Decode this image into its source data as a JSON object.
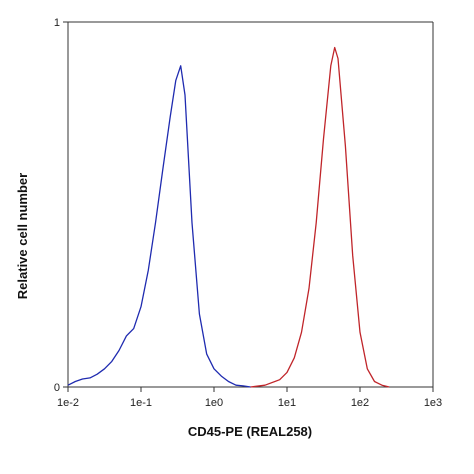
{
  "chart_data": {
    "type": "line",
    "xlabel": "CD45-PE (REAL258)",
    "ylabel": "Relative cell number",
    "x_scale": "log",
    "xlim": [
      0.01,
      1000
    ],
    "ylim": [
      0,
      1
    ],
    "x_ticks": [
      {
        "value": 0.01,
        "label": "1e-2"
      },
      {
        "value": 0.1,
        "label": "1e-1"
      },
      {
        "value": 1,
        "label": "1e0"
      },
      {
        "value": 10,
        "label": "1e1"
      },
      {
        "value": 100,
        "label": "1e2"
      },
      {
        "value": 1000,
        "label": "1e3"
      }
    ],
    "y_ticks": [
      {
        "value": 0,
        "label": "0"
      },
      {
        "value": 1,
        "label": "1"
      }
    ],
    "grid": false,
    "legend": "none",
    "series": [
      {
        "color": "#1f2bb0",
        "x": [
          0.01,
          0.0126,
          0.0158,
          0.02,
          0.0251,
          0.0316,
          0.0398,
          0.05,
          0.0631,
          0.0794,
          0.1,
          0.126,
          0.158,
          0.2,
          0.251,
          0.3,
          0.35,
          0.4,
          0.5,
          0.631,
          0.794,
          1.0,
          1.26,
          1.58,
          2.0,
          2.51,
          3.16
        ],
        "y": [
          0.005,
          0.015,
          0.022,
          0.025,
          0.035,
          0.05,
          0.07,
          0.1,
          0.14,
          0.16,
          0.22,
          0.32,
          0.45,
          0.6,
          0.74,
          0.84,
          0.88,
          0.8,
          0.45,
          0.2,
          0.09,
          0.05,
          0.03,
          0.015,
          0.005,
          0.003,
          0.0
        ]
      },
      {
        "color": "#c0252a",
        "x": [
          3.16,
          5.0,
          7.94,
          10,
          12.6,
          15.8,
          20,
          25.1,
          31.6,
          39.8,
          45,
          50,
          63.1,
          79.4,
          100,
          126,
          158,
          200,
          251
        ],
        "y": [
          0.0,
          0.005,
          0.02,
          0.04,
          0.08,
          0.15,
          0.27,
          0.45,
          0.68,
          0.88,
          0.93,
          0.9,
          0.66,
          0.36,
          0.15,
          0.05,
          0.015,
          0.005,
          0.0
        ]
      }
    ]
  }
}
